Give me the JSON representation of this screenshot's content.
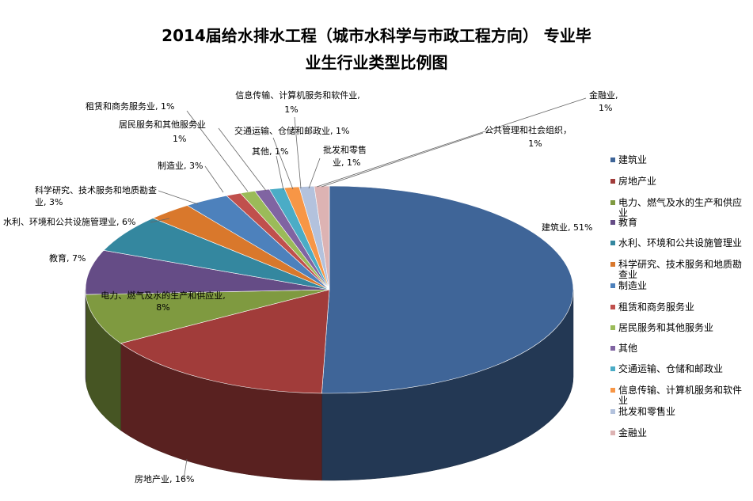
{
  "chart_data": {
    "type": "pie",
    "title_lines": [
      "2014届给水排水工程（城市水科学与市政工程方向） 专业毕",
      "业生行业类型比例图"
    ],
    "series": [
      {
        "values": [
          51,
          16,
          8,
          7,
          6,
          3,
          3,
          1,
          1,
          1,
          1,
          1,
          1,
          1
        ]
      }
    ],
    "categories": [
      "建筑业",
      "房地产业",
      "电力、燃气及水的生产和供应业",
      "教育",
      "水利、环境和公共设施管理业",
      "科学研究、技术服务和地质勘查业",
      "制造业",
      "租赁和商务服务业",
      "居民服务和其他服务业",
      "其他",
      "交通运输、仓储和邮政业",
      "信息传输、计算机服务和软件业",
      "批发和零售业",
      "金融业"
    ],
    "legend_labels": [
      "建筑业",
      "房地产业",
      "电力、燃气及水的生产和供应业",
      "教育",
      "水利、环境和公共设施管理业",
      "科学研究、技术服务和地质勘查业",
      "制造业",
      "租赁和商务服务业",
      "居民服务和其他服务业",
      "其他",
      "交通运输、仓储和邮政业",
      "信息传输、计算机服务和软件业",
      "批发和零售业",
      "金融业"
    ],
    "data_labels": [
      [
        "建筑业, 51%"
      ],
      [
        "房地产业, 16%"
      ],
      [
        "电力、燃气及水的生产和供应业,",
        "8%"
      ],
      [
        "教育, 7%"
      ],
      [
        "水利、环境和公共设施管理业, 6%"
      ],
      [
        "科学研究、技术服务和地质勘查",
        "业, 3%"
      ],
      [
        "制造业, 3%"
      ],
      [
        "租赁和商务服务业, 1%"
      ],
      [
        "居民服务和其他服务业",
        "1%"
      ],
      [
        "其他, 1%"
      ],
      [
        "交通运输、仓储和邮政业, 1%"
      ],
      [
        "信息传输、计算机服务和软件业,",
        "1%"
      ],
      [
        "批发和零售",
        "业, 1%"
      ],
      [
        "金融业,",
        "1%"
      ]
    ],
    "extra_label": [
      "公共管理和社会组织，",
      "1%"
    ],
    "colors": [
      "#3F6598",
      "#A13C3A",
      "#7F9A40",
      "#654C86",
      "#34879F",
      "#D9782C",
      "#4D81BC",
      "#C0504D",
      "#9BBB59",
      "#8064A2",
      "#4BACC6",
      "#F79646",
      "#B3C2DD",
      "#DDB3B3"
    ],
    "legend": "right"
  }
}
